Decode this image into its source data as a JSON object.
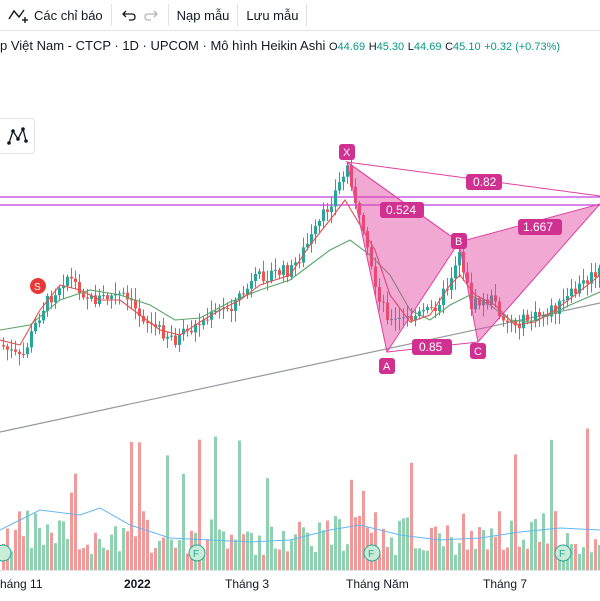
{
  "toolbar": {
    "indicators_label": "Các chỉ báo",
    "undo_icon": "undo-icon",
    "redo_icon": "redo-icon",
    "load_template_label": "Nạp mẫu",
    "save_template_label": "Lưu mẫu"
  },
  "legend": {
    "title": "p Việt Nam - CTCP · 1D · UPCOM · Mô hình Heikin Ashi",
    "open_key": "O",
    "open": "44.69",
    "high_key": "H",
    "high": "45.30",
    "low_key": "L",
    "low": "44.69",
    "close_key": "C",
    "close": "45.10",
    "change": "+0.32 (+0.73%)"
  },
  "pattern": {
    "points": {
      "x": "X",
      "a": "A",
      "b": "B",
      "c": "C"
    },
    "ratios": {
      "xb": "0.82",
      "ab": "0.524",
      "bc": "1.667",
      "ac": "0.85"
    },
    "marker_s": "S",
    "event_marker": "F"
  },
  "xaxis": {
    "labels": [
      "háng 11",
      "2022",
      "Tháng 3",
      "Tháng Năm",
      "Tháng 7"
    ]
  },
  "colors": {
    "up": "#26a69a",
    "down": "#ef5350",
    "pattern_fill": "#e040a0",
    "horizontal_line": "#c040e0",
    "volume_up": "#8fd1b0",
    "volume_down": "#f29a9a"
  }
}
